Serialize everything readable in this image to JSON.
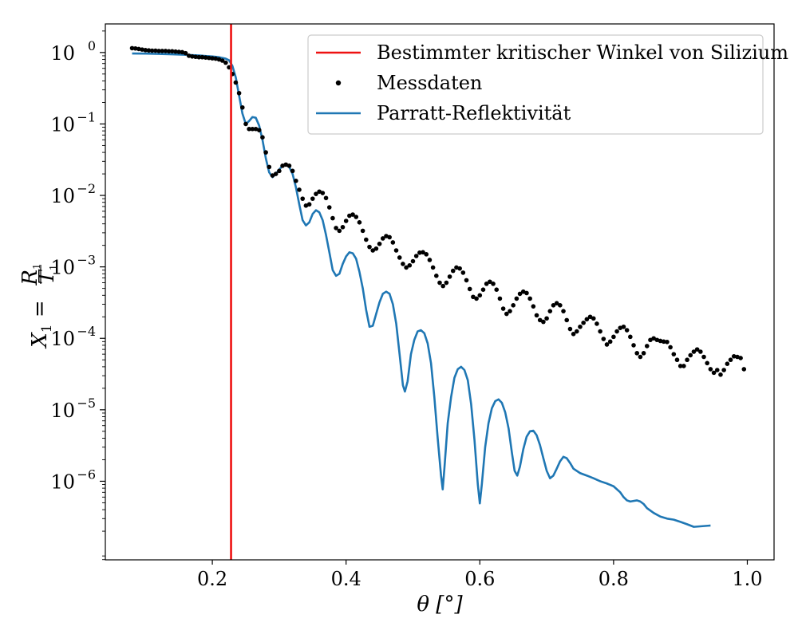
{
  "chart_data": {
    "type": "line",
    "xlabel": "θ [°]",
    "ylabel": {
      "base": "X",
      "sub": "1",
      "eq": " = ",
      "num": "R",
      "num_sub": "1",
      "den": "T",
      "den_sub": "1"
    },
    "xlim": [
      0.04,
      1.04
    ],
    "ylim_log10": [
      -7.1,
      0.4
    ],
    "y_scale": "log",
    "x_ticks": [
      {
        "value": 0.2,
        "label": "0.2"
      },
      {
        "value": 0.4,
        "label": "0.4"
      },
      {
        "value": 0.6,
        "label": "0.6"
      },
      {
        "value": 0.8,
        "label": "0.8"
      },
      {
        "value": 1.0,
        "label": "1.0"
      }
    ],
    "y_ticks": [
      {
        "exp": 0,
        "base": "10",
        "label": "0"
      },
      {
        "exp": -1,
        "base": "10",
        "label": "−1"
      },
      {
        "exp": -2,
        "base": "10",
        "label": "−2"
      },
      {
        "exp": -3,
        "base": "10",
        "label": "−3"
      },
      {
        "exp": -4,
        "base": "10",
        "label": "−4"
      },
      {
        "exp": -5,
        "base": "10",
        "label": "−5"
      },
      {
        "exp": -6,
        "base": "10",
        "label": "−6"
      }
    ],
    "legend_position": "top-right",
    "critical_angle": {
      "name": "Bestimmter kritischer Winkel von Silizium",
      "x": 0.228,
      "color": "#ee1111"
    },
    "measured": {
      "name": "Messdaten",
      "color": "#000000",
      "points": [
        [
          0.08,
          1.15
        ],
        [
          0.085,
          1.14
        ],
        [
          0.09,
          1.12
        ],
        [
          0.095,
          1.1
        ],
        [
          0.1,
          1.08
        ],
        [
          0.105,
          1.07
        ],
        [
          0.11,
          1.06
        ],
        [
          0.115,
          1.06
        ],
        [
          0.12,
          1.05
        ],
        [
          0.125,
          1.05
        ],
        [
          0.13,
          1.05
        ],
        [
          0.135,
          1.04
        ],
        [
          0.14,
          1.04
        ],
        [
          0.145,
          1.03
        ],
        [
          0.15,
          1.02
        ],
        [
          0.155,
          1.01
        ],
        [
          0.16,
          0.98
        ],
        [
          0.165,
          0.9
        ],
        [
          0.17,
          0.88
        ],
        [
          0.175,
          0.87
        ],
        [
          0.18,
          0.86
        ],
        [
          0.185,
          0.86
        ],
        [
          0.19,
          0.85
        ],
        [
          0.195,
          0.84
        ],
        [
          0.2,
          0.83
        ],
        [
          0.205,
          0.82
        ],
        [
          0.21,
          0.8
        ],
        [
          0.215,
          0.77
        ],
        [
          0.22,
          0.72
        ],
        [
          0.225,
          0.62
        ],
        [
          0.23,
          0.5
        ],
        [
          0.235,
          0.38
        ],
        [
          0.24,
          0.27
        ],
        [
          0.245,
          0.17
        ],
        [
          0.25,
          0.1
        ],
        [
          0.255,
          0.085
        ],
        [
          0.26,
          0.085
        ],
        [
          0.265,
          0.085
        ],
        [
          0.27,
          0.082
        ],
        [
          0.275,
          0.065
        ],
        [
          0.28,
          0.04
        ],
        [
          0.285,
          0.025
        ],
        [
          0.29,
          0.019
        ],
        [
          0.295,
          0.02
        ],
        [
          0.3,
          0.022
        ],
        [
          0.305,
          0.026
        ],
        [
          0.31,
          0.027
        ],
        [
          0.315,
          0.026
        ],
        [
          0.32,
          0.022
        ],
        [
          0.325,
          0.016
        ],
        [
          0.33,
          0.012
        ],
        [
          0.335,
          0.009
        ],
        [
          0.34,
          0.0072
        ],
        [
          0.345,
          0.0075
        ],
        [
          0.35,
          0.009
        ],
        [
          0.355,
          0.0105
        ],
        [
          0.36,
          0.0113
        ],
        [
          0.365,
          0.0108
        ],
        [
          0.37,
          0.0092
        ],
        [
          0.375,
          0.0068
        ],
        [
          0.38,
          0.0048
        ],
        [
          0.385,
          0.0035
        ],
        [
          0.39,
          0.0032
        ],
        [
          0.395,
          0.0036
        ],
        [
          0.4,
          0.0044
        ],
        [
          0.405,
          0.0052
        ],
        [
          0.41,
          0.0054
        ],
        [
          0.415,
          0.005
        ],
        [
          0.42,
          0.0042
        ],
        [
          0.425,
          0.0032
        ],
        [
          0.43,
          0.0024
        ],
        [
          0.435,
          0.0019
        ],
        [
          0.44,
          0.0017
        ],
        [
          0.445,
          0.0018
        ],
        [
          0.45,
          0.0021
        ],
        [
          0.455,
          0.0025
        ],
        [
          0.46,
          0.0027
        ],
        [
          0.465,
          0.0026
        ],
        [
          0.47,
          0.0022
        ],
        [
          0.475,
          0.0017
        ],
        [
          0.48,
          0.00135
        ],
        [
          0.485,
          0.0011
        ],
        [
          0.49,
          0.00098
        ],
        [
          0.495,
          0.00105
        ],
        [
          0.5,
          0.0012
        ],
        [
          0.505,
          0.00142
        ],
        [
          0.51,
          0.00158
        ],
        [
          0.515,
          0.0016
        ],
        [
          0.52,
          0.0015
        ],
        [
          0.525,
          0.00125
        ],
        [
          0.53,
          0.00098
        ],
        [
          0.535,
          0.00075
        ],
        [
          0.54,
          0.0006
        ],
        [
          0.545,
          0.00054
        ],
        [
          0.55,
          0.0006
        ],
        [
          0.555,
          0.00073
        ],
        [
          0.56,
          0.00088
        ],
        [
          0.565,
          0.00098
        ],
        [
          0.57,
          0.00095
        ],
        [
          0.575,
          0.00083
        ],
        [
          0.58,
          0.00065
        ],
        [
          0.585,
          0.00049
        ],
        [
          0.59,
          0.00038
        ],
        [
          0.595,
          0.00036
        ],
        [
          0.6,
          0.0004
        ],
        [
          0.605,
          0.00048
        ],
        [
          0.61,
          0.00058
        ],
        [
          0.615,
          0.00062
        ],
        [
          0.62,
          0.00058
        ],
        [
          0.625,
          0.00048
        ],
        [
          0.63,
          0.00036
        ],
        [
          0.635,
          0.00026
        ],
        [
          0.64,
          0.00022
        ],
        [
          0.645,
          0.00024
        ],
        [
          0.65,
          0.00029
        ],
        [
          0.655,
          0.00036
        ],
        [
          0.66,
          0.00042
        ],
        [
          0.665,
          0.00045
        ],
        [
          0.67,
          0.00043
        ],
        [
          0.675,
          0.00036
        ],
        [
          0.68,
          0.00028
        ],
        [
          0.685,
          0.00021
        ],
        [
          0.69,
          0.00018
        ],
        [
          0.695,
          0.00017
        ],
        [
          0.7,
          0.00019
        ],
        [
          0.705,
          0.00024
        ],
        [
          0.71,
          0.00029
        ],
        [
          0.715,
          0.00031
        ],
        [
          0.72,
          0.00029
        ],
        [
          0.725,
          0.00024
        ],
        [
          0.73,
          0.00018
        ],
        [
          0.735,
          0.000135
        ],
        [
          0.74,
          0.000115
        ],
        [
          0.745,
          0.000125
        ],
        [
          0.75,
          0.000145
        ],
        [
          0.755,
          0.000165
        ],
        [
          0.76,
          0.000185
        ],
        [
          0.765,
          0.0002
        ],
        [
          0.77,
          0.00019
        ],
        [
          0.775,
          0.00016
        ],
        [
          0.78,
          0.000125
        ],
        [
          0.785,
          9.8e-05
        ],
        [
          0.79,
          8.2e-05
        ],
        [
          0.795,
          9e-05
        ],
        [
          0.8,
          0.000105
        ],
        [
          0.805,
          0.000125
        ],
        [
          0.81,
          0.00014
        ],
        [
          0.815,
          0.000145
        ],
        [
          0.82,
          0.00013
        ],
        [
          0.825,
          0.000105
        ],
        [
          0.83,
          8e-05
        ],
        [
          0.835,
          6.2e-05
        ],
        [
          0.84,
          5.5e-05
        ],
        [
          0.845,
          6.2e-05
        ],
        [
          0.85,
          7.8e-05
        ],
        [
          0.855,
          9.5e-05
        ],
        [
          0.86,
          0.0001
        ],
        [
          0.865,
          9.5e-05
        ],
        [
          0.87,
          9.2e-05
        ],
        [
          0.875,
          9e-05
        ],
        [
          0.88,
          8.9e-05
        ],
        [
          0.885,
          7.5e-05
        ],
        [
          0.89,
          6e-05
        ],
        [
          0.895,
          5e-05
        ],
        [
          0.9,
          4.1e-05
        ],
        [
          0.905,
          4.1e-05
        ],
        [
          0.91,
          5e-05
        ],
        [
          0.915,
          5.8e-05
        ],
        [
          0.92,
          6.5e-05
        ],
        [
          0.925,
          7e-05
        ],
        [
          0.93,
          6.5e-05
        ],
        [
          0.935,
          5.5e-05
        ],
        [
          0.94,
          4.5e-05
        ],
        [
          0.945,
          3.7e-05
        ],
        [
          0.95,
          3.3e-05
        ],
        [
          0.955,
          3.6e-05
        ],
        [
          0.96,
          3.1e-05
        ],
        [
          0.965,
          3.6e-05
        ],
        [
          0.97,
          4.4e-05
        ],
        [
          0.975,
          5e-05
        ],
        [
          0.98,
          5.6e-05
        ],
        [
          0.985,
          5.5e-05
        ],
        [
          0.99,
          5.3e-05
        ],
        [
          0.995,
          3.7e-05
        ]
      ]
    },
    "parratt": {
      "name": "Parratt-Reflektivität",
      "color": "#1f77b4",
      "points": [
        [
          0.08,
          0.97
        ],
        [
          0.1,
          0.965
        ],
        [
          0.12,
          0.955
        ],
        [
          0.14,
          0.945
        ],
        [
          0.16,
          0.93
        ],
        [
          0.18,
          0.91
        ],
        [
          0.2,
          0.88
        ],
        [
          0.21,
          0.86
        ],
        [
          0.22,
          0.82
        ],
        [
          0.225,
          0.78
        ],
        [
          0.23,
          0.65
        ],
        [
          0.235,
          0.45
        ],
        [
          0.24,
          0.25
        ],
        [
          0.245,
          0.14
        ],
        [
          0.25,
          0.1
        ],
        [
          0.255,
          0.11
        ],
        [
          0.26,
          0.125
        ],
        [
          0.265,
          0.122
        ],
        [
          0.27,
          0.095
        ],
        [
          0.275,
          0.06
        ],
        [
          0.28,
          0.033
        ],
        [
          0.285,
          0.021
        ],
        [
          0.29,
          0.018
        ],
        [
          0.295,
          0.02
        ],
        [
          0.3,
          0.023
        ],
        [
          0.305,
          0.026
        ],
        [
          0.31,
          0.027
        ],
        [
          0.315,
          0.025
        ],
        [
          0.32,
          0.02
        ],
        [
          0.325,
          0.013
        ],
        [
          0.33,
          0.0075
        ],
        [
          0.335,
          0.0045
        ],
        [
          0.34,
          0.0038
        ],
        [
          0.345,
          0.0042
        ],
        [
          0.35,
          0.0055
        ],
        [
          0.355,
          0.0062
        ],
        [
          0.36,
          0.0058
        ],
        [
          0.365,
          0.0045
        ],
        [
          0.37,
          0.0028
        ],
        [
          0.375,
          0.0016
        ],
        [
          0.38,
          0.0009
        ],
        [
          0.385,
          0.00075
        ],
        [
          0.39,
          0.0008
        ],
        [
          0.395,
          0.0011
        ],
        [
          0.4,
          0.0014
        ],
        [
          0.405,
          0.0016
        ],
        [
          0.41,
          0.00155
        ],
        [
          0.415,
          0.0013
        ],
        [
          0.42,
          0.00085
        ],
        [
          0.425,
          0.0005
        ],
        [
          0.43,
          0.00025
        ],
        [
          0.435,
          0.000145
        ],
        [
          0.44,
          0.00015
        ],
        [
          0.445,
          0.00022
        ],
        [
          0.45,
          0.00032
        ],
        [
          0.455,
          0.00042
        ],
        [
          0.46,
          0.00045
        ],
        [
          0.465,
          0.00042
        ],
        [
          0.47,
          0.0003
        ],
        [
          0.475,
          0.00016
        ],
        [
          0.48,
          6e-05
        ],
        [
          0.485,
          2.2e-05
        ],
        [
          0.488,
          1.8e-05
        ],
        [
          0.492,
          2.5e-05
        ],
        [
          0.497,
          6e-05
        ],
        [
          0.502,
          9.5e-05
        ],
        [
          0.507,
          0.000125
        ],
        [
          0.512,
          0.00013
        ],
        [
          0.517,
          0.000118
        ],
        [
          0.522,
          8.5e-05
        ],
        [
          0.527,
          4.5e-05
        ],
        [
          0.532,
          1.5e-05
        ],
        [
          0.537,
          4e-06
        ],
        [
          0.542,
          1.2e-06
        ],
        [
          0.5445,
          7.7e-07
        ],
        [
          0.547,
          1.5e-06
        ],
        [
          0.552,
          6.5e-06
        ],
        [
          0.557,
          1.5e-05
        ],
        [
          0.562,
          2.8e-05
        ],
        [
          0.567,
          3.7e-05
        ],
        [
          0.572,
          4e-05
        ],
        [
          0.577,
          3.6e-05
        ],
        [
          0.582,
          2.6e-05
        ],
        [
          0.587,
          1.2e-05
        ],
        [
          0.592,
          3.8e-06
        ],
        [
          0.597,
          9e-07
        ],
        [
          0.6,
          4.9e-07
        ],
        [
          0.603,
          9e-07
        ],
        [
          0.608,
          3e-06
        ],
        [
          0.613,
          6.5e-06
        ],
        [
          0.618,
          1.05e-05
        ],
        [
          0.623,
          1.32e-05
        ],
        [
          0.628,
          1.4e-05
        ],
        [
          0.633,
          1.25e-05
        ],
        [
          0.638,
          9.2e-06
        ],
        [
          0.643,
          5.5e-06
        ],
        [
          0.648,
          2.5e-06
        ],
        [
          0.652,
          1.4e-06
        ],
        [
          0.656,
          1.2e-06
        ],
        [
          0.66,
          1.6e-06
        ],
        [
          0.665,
          2.8e-06
        ],
        [
          0.67,
          4.2e-06
        ],
        [
          0.675,
          5e-06
        ],
        [
          0.68,
          5.1e-06
        ],
        [
          0.685,
          4.4e-06
        ],
        [
          0.69,
          3.2e-06
        ],
        [
          0.695,
          2.1e-06
        ],
        [
          0.7,
          1.4e-06
        ],
        [
          0.705,
          1.1e-06
        ],
        [
          0.71,
          1.2e-06
        ],
        [
          0.715,
          1.5e-06
        ],
        [
          0.72,
          1.9e-06
        ],
        [
          0.725,
          2.2e-06
        ],
        [
          0.73,
          2.1e-06
        ],
        [
          0.735,
          1.8e-06
        ],
        [
          0.74,
          1.5e-06
        ],
        [
          0.75,
          1.3e-06
        ],
        [
          0.76,
          1.2e-06
        ],
        [
          0.77,
          1.1e-06
        ],
        [
          0.78,
          1e-06
        ],
        [
          0.79,
          9.3e-07
        ],
        [
          0.8,
          8.5e-07
        ],
        [
          0.81,
          7e-07
        ],
        [
          0.815,
          6e-07
        ],
        [
          0.82,
          5.4e-07
        ],
        [
          0.825,
          5.2e-07
        ],
        [
          0.83,
          5.3e-07
        ],
        [
          0.835,
          5.4e-07
        ],
        [
          0.84,
          5.2e-07
        ],
        [
          0.845,
          4.8e-07
        ],
        [
          0.85,
          4.2e-07
        ],
        [
          0.86,
          3.6e-07
        ],
        [
          0.87,
          3.2e-07
        ],
        [
          0.88,
          3e-07
        ],
        [
          0.89,
          2.9e-07
        ],
        [
          0.9,
          2.7e-07
        ],
        [
          0.91,
          2.5e-07
        ],
        [
          0.92,
          2.3e-07
        ],
        [
          0.945,
          2.4e-07
        ]
      ]
    }
  }
}
